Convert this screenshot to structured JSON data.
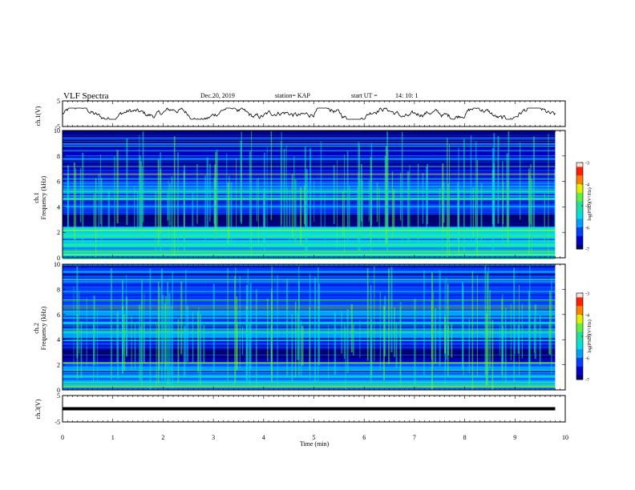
{
  "header": {
    "title": "VLF Spectra",
    "date": "Dec.20, 2019",
    "station": "station= KAP",
    "start_label": "start  UT  =",
    "start_time": "14: 10: 1"
  },
  "colors": {
    "colormap": [
      "#000070",
      "#0000c8",
      "#0040ff",
      "#00a0ff",
      "#00e0e0",
      "#20e0a0",
      "#60f040",
      "#e0f000",
      "#ff8000",
      "#ff2000",
      "#ffe0e0"
    ]
  },
  "chart_data": [
    {
      "type": "line",
      "panel": "ch1-waveform",
      "ylabel": "ch.1(V)",
      "ylim": [
        -5,
        5
      ],
      "yticks": [
        5,
        -5
      ],
      "xlim": [
        0,
        10
      ],
      "description_series": "Noisy oscillating voltage, amplitude roughly ±2 V about 0, spanning 0–9.8 min",
      "x_end": 9.8,
      "amplitude_range": [
        -2.2,
        2.2
      ]
    },
    {
      "type": "heatmap",
      "panel": "ch1-spectrogram",
      "ylabel": "ch.1\nFrequency  (kHz)",
      "ylim": [
        0,
        10
      ],
      "yticks": [
        0,
        2,
        4,
        6,
        8,
        10
      ],
      "xlim": [
        0,
        10
      ],
      "x_end": 9.8,
      "colorbar": {
        "label": "log(PSD)(V²/Hz)",
        "ticks": [
          -3,
          -4,
          -5,
          -6,
          -7
        ],
        "range": [
          -7,
          -3
        ]
      },
      "dominant_bands_khz": [
        {
          "band": [
            0,
            2.5
          ],
          "level": -5.5
        },
        {
          "band": [
            2.5,
            3.4
          ],
          "level": -7
        },
        {
          "band": [
            3.4,
            4.6
          ],
          "level": -6.2
        },
        {
          "band": [
            4.6,
            6.0
          ],
          "level": -5.8
        },
        {
          "band": [
            6.0,
            10
          ],
          "level": -6.4
        }
      ]
    },
    {
      "type": "heatmap",
      "panel": "ch2-spectrogram",
      "ylabel": "ch.2\nFrequency  (kHz)",
      "ylim": [
        0,
        10
      ],
      "yticks": [
        0,
        2,
        4,
        6,
        8,
        10
      ],
      "xlim": [
        0,
        10
      ],
      "x_end": 9.8,
      "colorbar": {
        "label": "log(PSD)(V²/Hz)",
        "ticks": [
          -3,
          -4,
          -5,
          -6,
          -7
        ],
        "range": [
          -7,
          -3
        ]
      },
      "dominant_bands_khz": [
        {
          "band": [
            0,
            2.2
          ],
          "level": -5.9
        },
        {
          "band": [
            2.2,
            3.4
          ],
          "level": -7
        },
        {
          "band": [
            3.4,
            4.2
          ],
          "level": -6.3
        },
        {
          "band": [
            4.2,
            6.5
          ],
          "level": -5.9
        },
        {
          "band": [
            6.5,
            10
          ],
          "level": -6.2
        }
      ]
    },
    {
      "type": "line",
      "panel": "ch3-waveform",
      "ylabel": "ch.3(V)",
      "ylim": [
        -5,
        5
      ],
      "yticks": [
        5,
        -5
      ],
      "xlim": [
        0,
        10
      ],
      "x_end": 9.8,
      "value": 0
    }
  ],
  "xaxis": {
    "label": "Time  (min)",
    "ticks": [
      "0",
      "1",
      "2",
      "3",
      "4",
      "5",
      "6",
      "7",
      "8",
      "9",
      "10"
    ]
  }
}
